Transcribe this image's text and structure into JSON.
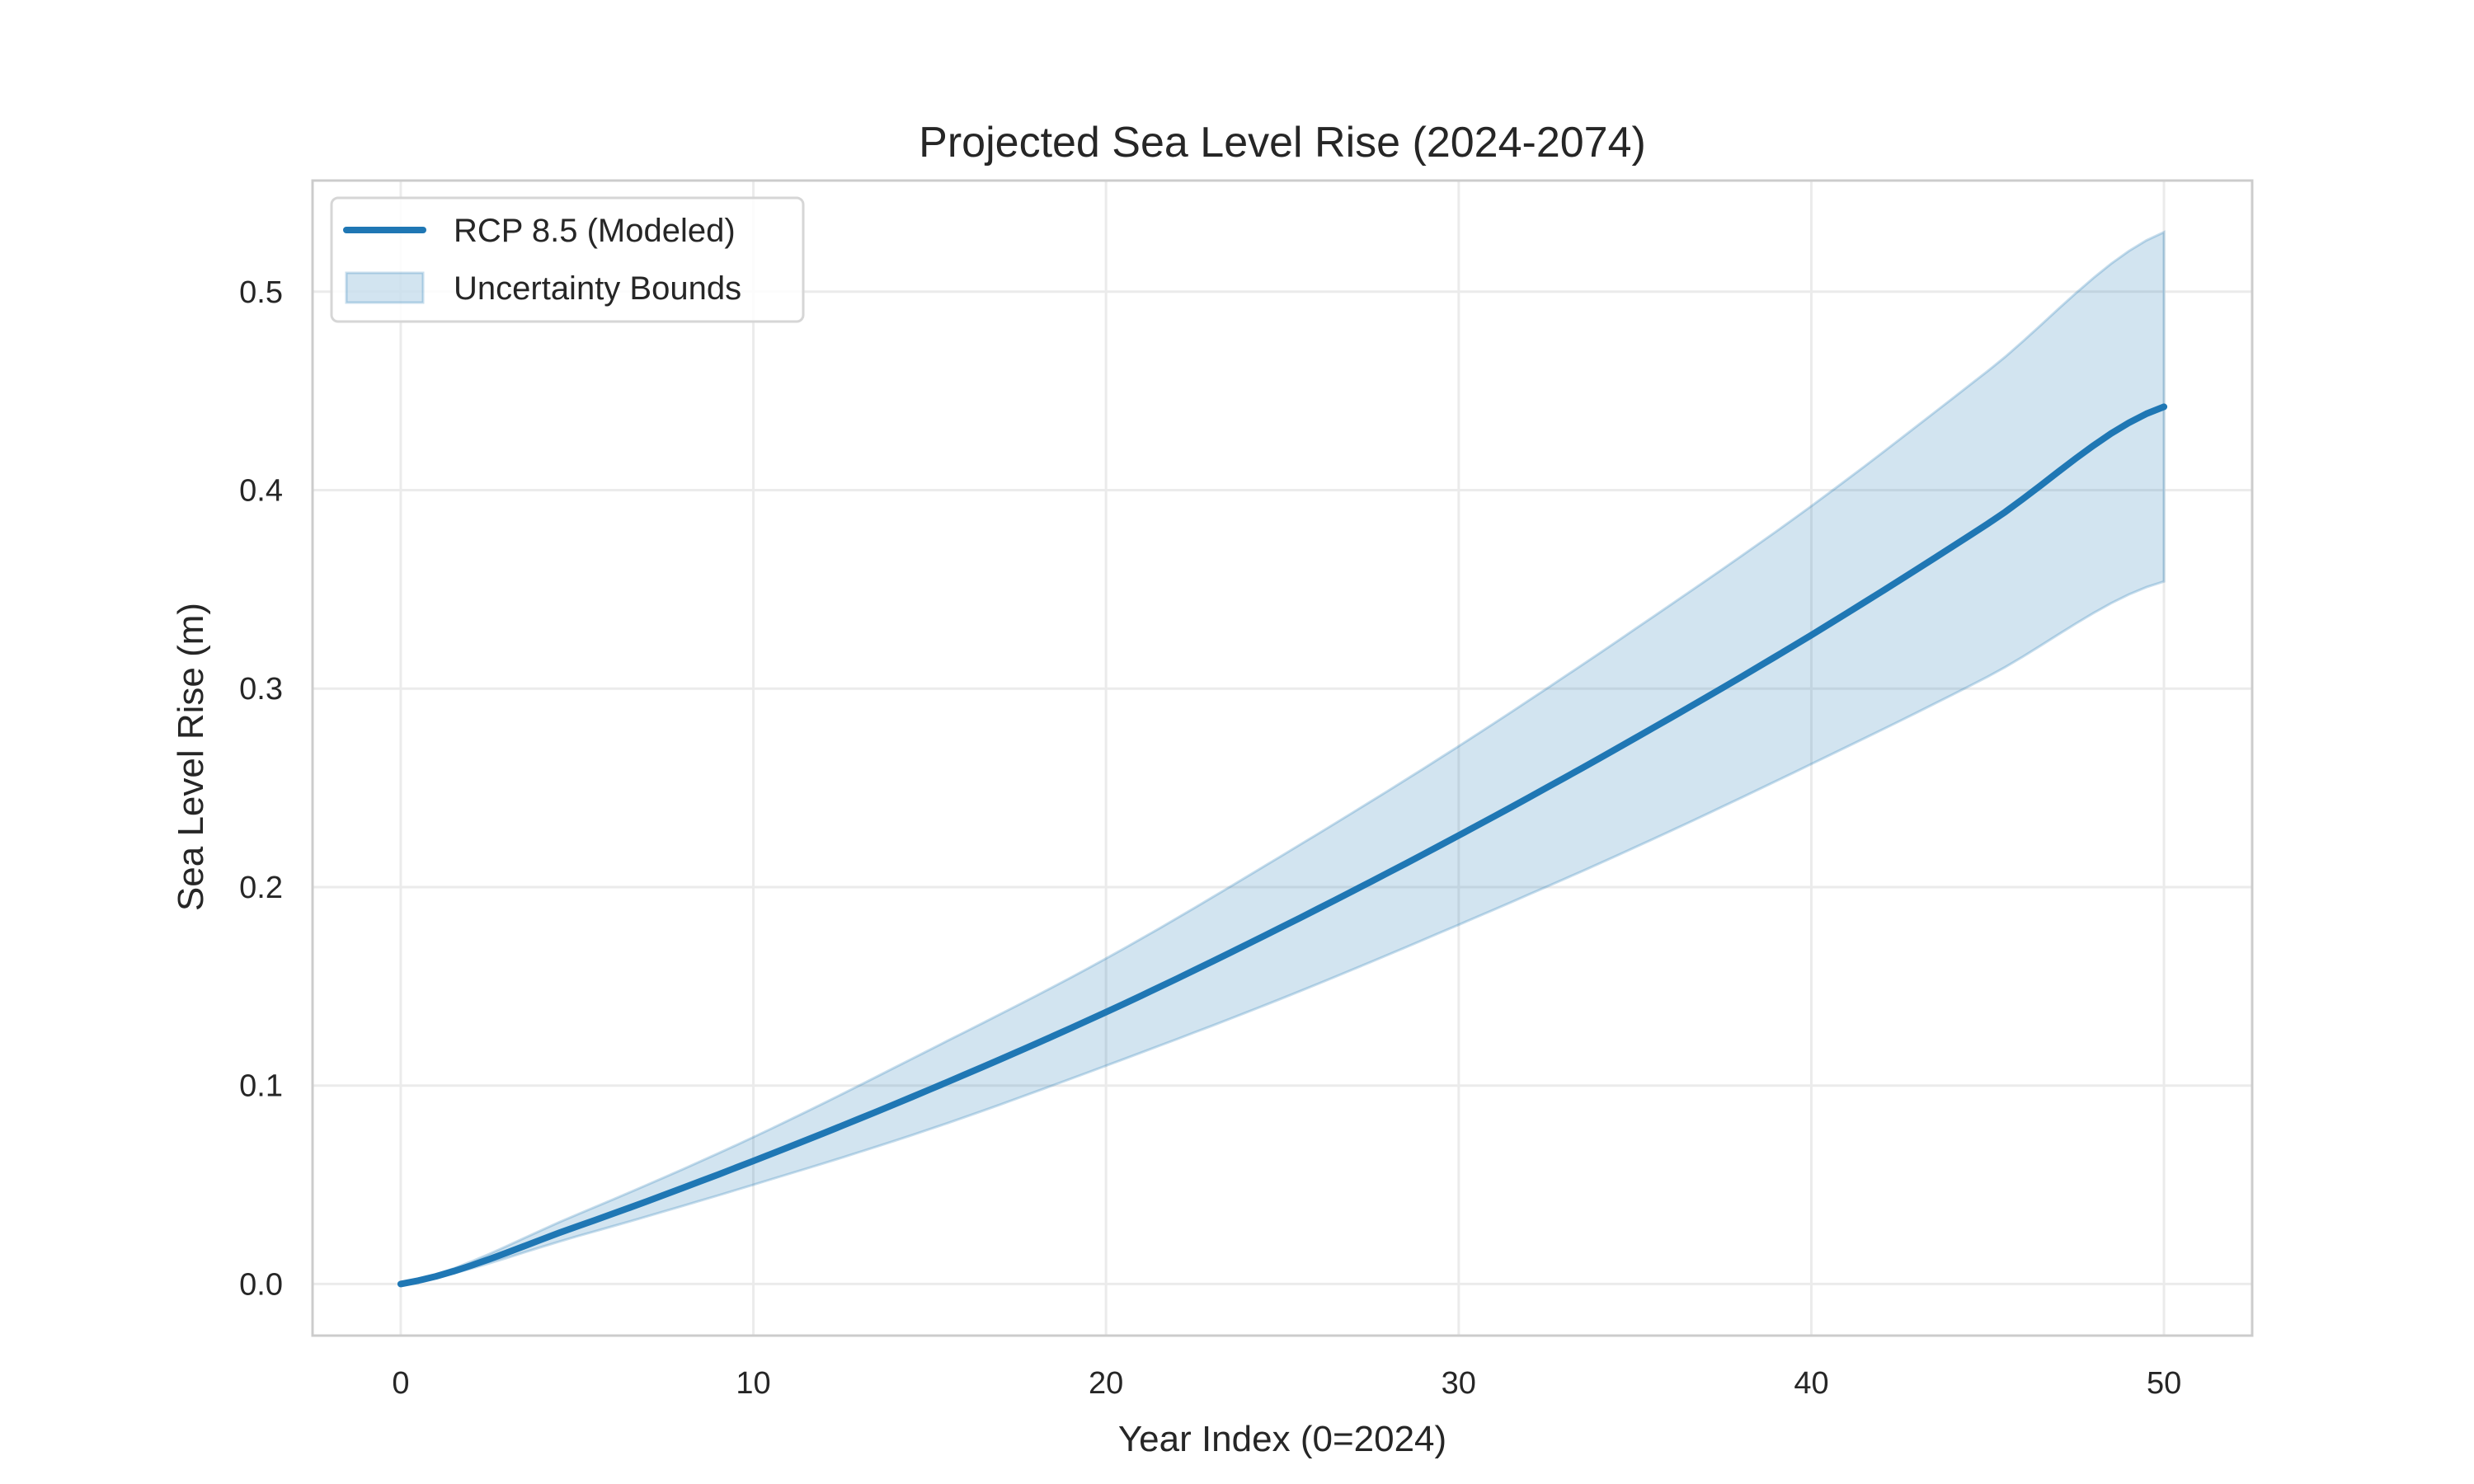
{
  "chart_data": {
    "type": "line",
    "title": "Projected Sea Level Rise (2024-2074)",
    "xlabel": "Year Index (0=2024)",
    "ylabel": "Sea Level Rise (m)",
    "xlim": [
      -2.5,
      52.5
    ],
    "ylim": [
      -0.026,
      0.556
    ],
    "xticks": [
      0,
      10,
      20,
      30,
      40,
      50
    ],
    "xtick_labels": [
      "0",
      "10",
      "20",
      "30",
      "40",
      "50"
    ],
    "yticks": [
      0.0,
      0.1,
      0.2,
      0.3,
      0.4,
      0.5
    ],
    "ytick_labels": [
      "0.0",
      "0.1",
      "0.2",
      "0.3",
      "0.4",
      "0.5"
    ],
    "grid": true,
    "legend_placement": "upper-left",
    "x": [
      0,
      5,
      10,
      15,
      20,
      25,
      30,
      35,
      40,
      45,
      50
    ],
    "series": [
      {
        "name": "RCP 8.5 (Modeled)",
        "kind": "line",
        "color": "#1f77b4",
        "values": [
          0,
          0.029,
          0.062,
          0.098,
          0.137,
          0.18,
          0.226,
          0.275,
          0.327,
          0.383,
          0.442
        ]
      },
      {
        "name": "Uncertainty Bounds",
        "kind": "band",
        "color": "#1f77b4",
        "opacity": 0.2,
        "upper": [
          0,
          0.035,
          0.074,
          0.118,
          0.164,
          0.216,
          0.271,
          0.33,
          0.392,
          0.46,
          0.53
        ],
        "lower": [
          0,
          0.024,
          0.05,
          0.078,
          0.11,
          0.144,
          0.181,
          0.22,
          0.262,
          0.306,
          0.354
        ]
      }
    ]
  }
}
